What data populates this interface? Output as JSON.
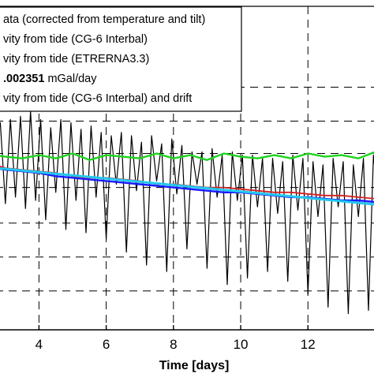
{
  "chart_data": {
    "type": "line",
    "xlabel": "Time [days]",
    "ylabel": "",
    "title": "",
    "xlim": [
      2.7,
      14.2
    ],
    "ylim": [
      -1.0,
      1.0
    ],
    "x_ticks": [
      4,
      6,
      8,
      10,
      12
    ],
    "x_tick_labels": [
      "4",
      "6",
      "8",
      "10",
      "12"
    ],
    "grid": "dashed",
    "legend_position": "top-left",
    "legend": [
      {
        "text": "ata (corrected from temperature and tilt)",
        "color": "#000000",
        "style": "line"
      },
      {
        "text": "vity from tide (CG-6 Interbal)",
        "color": "#d42020",
        "style": "line"
      },
      {
        "text": "vity from tide (ETRERNA3.3)",
        "color": "#1fd41f",
        "style": "line"
      },
      {
        "text_bold": ".002351",
        "text_rest": " mGal/day",
        "color": "#1a1aff",
        "style": "line"
      },
      {
        "text": "vity from tide (CG-6 Interbal) and drift",
        "color": "#22c8ee",
        "style": "line"
      }
    ],
    "series": [
      {
        "color": "#000000",
        "width": 1.2,
        "x": [
          2.7,
          2.85,
          3.0,
          3.15,
          3.3,
          3.45,
          3.6,
          3.75,
          3.9,
          4.05,
          4.2,
          4.35,
          4.5,
          4.65,
          4.8,
          4.95,
          5.1,
          5.25,
          5.4,
          5.55,
          5.7,
          5.85,
          6.0,
          6.15,
          6.3,
          6.45,
          6.6,
          6.75,
          6.9,
          7.05,
          7.2,
          7.35,
          7.5,
          7.65,
          7.8,
          7.95,
          8.1,
          8.25,
          8.4,
          8.55,
          8.7,
          8.85,
          9.0,
          9.15,
          9.3,
          9.45,
          9.6,
          9.75,
          9.9,
          10.05,
          10.2,
          10.35,
          10.5,
          10.65,
          10.8,
          10.95,
          11.1,
          11.25,
          11.4,
          11.55,
          11.7,
          11.85,
          12.0,
          12.15,
          12.3,
          12.45,
          12.6,
          12.75,
          12.9,
          13.05,
          13.2,
          13.35,
          13.5,
          13.65,
          13.8,
          13.95,
          14.1
        ],
        "y": [
          0.12,
          0.28,
          -0.22,
          0.3,
          -0.18,
          0.32,
          -0.25,
          0.35,
          -0.2,
          0.3,
          -0.32,
          0.25,
          -0.15,
          0.3,
          -0.38,
          0.28,
          -0.2,
          0.24,
          -0.4,
          0.26,
          -0.18,
          0.22,
          -0.44,
          0.2,
          -0.1,
          0.22,
          -0.52,
          0.2,
          -0.14,
          0.16,
          -0.6,
          0.2,
          -0.08,
          0.15,
          -0.64,
          0.18,
          -0.16,
          0.14,
          -0.5,
          0.1,
          -0.1,
          0.1,
          -0.62,
          0.12,
          -0.18,
          0.08,
          -0.72,
          0.1,
          -0.2,
          0.08,
          -0.68,
          0.08,
          -0.24,
          0.06,
          -0.64,
          0.06,
          -0.28,
          0.04,
          -0.7,
          0.08,
          -0.26,
          0.06,
          -0.78,
          0.04,
          -0.3,
          0.02,
          -0.86,
          0.06,
          -0.24,
          0.04,
          -0.9,
          0.02,
          -0.3,
          0.06,
          -0.88,
          0.08,
          -0.22
        ]
      },
      {
        "color": "#1a1aff",
        "width": 2.4,
        "x": [
          2.7,
          3.0,
          3.5,
          4.0,
          4.5,
          5.0,
          5.5,
          6.0,
          6.5,
          7.0,
          7.5,
          8.0,
          8.5,
          9.0,
          9.5,
          10.0,
          10.5,
          11.0,
          11.5,
          12.0,
          12.5,
          13.0,
          13.5,
          14.0,
          14.2
        ],
        "y": [
          0.0,
          -0.01,
          -0.02,
          -0.03,
          -0.05,
          -0.06,
          -0.07,
          -0.08,
          -0.09,
          -0.1,
          -0.11,
          -0.12,
          -0.13,
          -0.14,
          -0.15,
          -0.15,
          -0.16,
          -0.17,
          -0.18,
          -0.18,
          -0.19,
          -0.2,
          -0.2,
          -0.21,
          -0.22
        ]
      },
      {
        "color": "#d42020",
        "width": 1.8,
        "x": [
          2.7,
          3.0,
          3.5,
          4.0,
          4.5,
          5.0,
          5.5,
          6.0,
          6.5,
          7.0,
          7.5,
          8.0,
          8.5,
          9.0,
          9.5,
          10.0,
          10.5,
          11.0,
          11.5,
          12.0,
          12.5,
          13.0,
          13.5,
          14.0,
          14.2
        ],
        "y": [
          0.02,
          0.0,
          -0.01,
          -0.02,
          -0.03,
          -0.05,
          -0.06,
          -0.06,
          -0.07,
          -0.08,
          -0.1,
          -0.1,
          -0.11,
          -0.12,
          -0.12,
          -0.13,
          -0.14,
          -0.15,
          -0.15,
          -0.16,
          -0.17,
          -0.17,
          -0.18,
          -0.19,
          -0.19
        ]
      },
      {
        "color": "#1fd41f",
        "width": 2.4,
        "x": [
          2.7,
          3.0,
          3.5,
          4.0,
          4.5,
          5.0,
          5.5,
          6.0,
          6.5,
          7.0,
          7.5,
          8.0,
          8.5,
          9.0,
          9.5,
          10.0,
          10.5,
          11.0,
          11.5,
          12.0,
          12.5,
          13.0,
          13.5,
          14.0,
          14.2
        ],
        "y": [
          0.08,
          0.07,
          0.06,
          0.08,
          0.06,
          0.09,
          0.05,
          0.08,
          0.07,
          0.06,
          0.09,
          0.06,
          0.08,
          0.05,
          0.09,
          0.07,
          0.06,
          0.08,
          0.06,
          0.09,
          0.07,
          0.08,
          0.06,
          0.1,
          0.06
        ]
      },
      {
        "color": "#22c8ee",
        "width": 3.0,
        "x": [
          2.7,
          3.0,
          3.5,
          4.0,
          4.5,
          5.0,
          5.5,
          6.0,
          6.5,
          7.0,
          7.5,
          8.0,
          8.5,
          9.0,
          9.5,
          10.0,
          10.5,
          11.0,
          11.5,
          12.0,
          12.5,
          13.0,
          13.5,
          14.0,
          14.2
        ],
        "y": [
          0.0,
          -0.005,
          -0.015,
          -0.025,
          -0.035,
          -0.045,
          -0.055,
          -0.065,
          -0.075,
          -0.085,
          -0.095,
          -0.105,
          -0.115,
          -0.125,
          -0.135,
          -0.145,
          -0.155,
          -0.165,
          -0.175,
          -0.185,
          -0.195,
          -0.205,
          -0.215,
          -0.225,
          -0.23
        ]
      }
    ]
  }
}
